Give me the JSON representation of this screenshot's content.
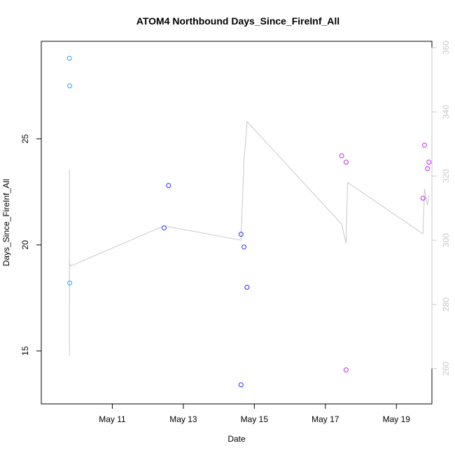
{
  "chart_data": {
    "type": "scatter",
    "title": "ATOM4 Northbound Days_Since_FireInf_All",
    "xlabel": "Date",
    "ylabel": "Days_Since_FireInf_All",
    "xlim": [
      "2019-05-09",
      "2019-05-20"
    ],
    "ylim": [
      12.5,
      29.6
    ],
    "x_ticks": [
      {
        "x": "2019-05-11",
        "label": "May 11"
      },
      {
        "x": "2019-05-13",
        "label": "May 13"
      },
      {
        "x": "2019-05-15",
        "label": "May 15"
      },
      {
        "x": "2019-05-17",
        "label": "May 17"
      },
      {
        "x": "2019-05-19",
        "label": "May 19"
      }
    ],
    "y_ticks": [
      15,
      20,
      25
    ],
    "y2": {
      "lim": [
        249,
        362
      ],
      "ticks": [
        260,
        280,
        300,
        320,
        340,
        360
      ],
      "color": "#c8c8c8"
    },
    "series": [
      {
        "color": "#1fa9ff",
        "points": [
          {
            "x": "2019-05-09T19:00",
            "y": 28.8
          },
          {
            "x": "2019-05-09T19:12",
            "y": 27.5
          },
          {
            "x": "2019-05-09T19:12",
            "y": 18.2
          }
        ]
      },
      {
        "color": "#2b2bff",
        "points": [
          {
            "x": "2019-05-12T11:00",
            "y": 20.8
          },
          {
            "x": "2019-05-12T14:00",
            "y": 22.8
          },
          {
            "x": "2019-05-14T15:00",
            "y": 20.5
          },
          {
            "x": "2019-05-14T15:00",
            "y": 13.4
          },
          {
            "x": "2019-05-14T17:00",
            "y": 19.9
          },
          {
            "x": "2019-05-14T19:00",
            "y": 18.0
          }
        ]
      },
      {
        "color": "#c025f0",
        "points": [
          {
            "x": "2019-05-17T11:00",
            "y": 24.2
          },
          {
            "x": "2019-05-17T14:00",
            "y": 23.9
          },
          {
            "x": "2019-05-17T14:00",
            "y": 14.1
          },
          {
            "x": "2019-05-19T18:00",
            "y": 22.2
          },
          {
            "x": "2019-05-19T19:00",
            "y": 24.7
          },
          {
            "x": "2019-05-19T21:00",
            "y": 23.6
          },
          {
            "x": "2019-05-19T22:00",
            "y": 23.9
          }
        ]
      }
    ],
    "line_right_axis": {
      "color": "#c8c8c8",
      "points": [
        {
          "x": "2019-05-09T19:00",
          "y": 322
        },
        {
          "x": "2019-05-09T19:00",
          "y": 264
        },
        {
          "x": "2019-05-09T19:06",
          "y": 293
        },
        {
          "x": "2019-05-09T20:00",
          "y": 292
        },
        {
          "x": "2019-05-12T11:00",
          "y": 304.5
        },
        {
          "x": "2019-05-14T15:00",
          "y": 300
        },
        {
          "x": "2019-05-14T17:00",
          "y": 325
        },
        {
          "x": "2019-05-14T18:00",
          "y": 330
        },
        {
          "x": "2019-05-14T19:00",
          "y": 337
        },
        {
          "x": "2019-05-17T11:00",
          "y": 305
        },
        {
          "x": "2019-05-17T14:00",
          "y": 299
        },
        {
          "x": "2019-05-17T15:00",
          "y": 318
        },
        {
          "x": "2019-05-19T18:00",
          "y": 302
        },
        {
          "x": "2019-05-19T19:00",
          "y": 316
        },
        {
          "x": "2019-05-19T21:00",
          "y": 311
        },
        {
          "x": "2019-05-19T22:00",
          "y": 314
        }
      ]
    }
  }
}
